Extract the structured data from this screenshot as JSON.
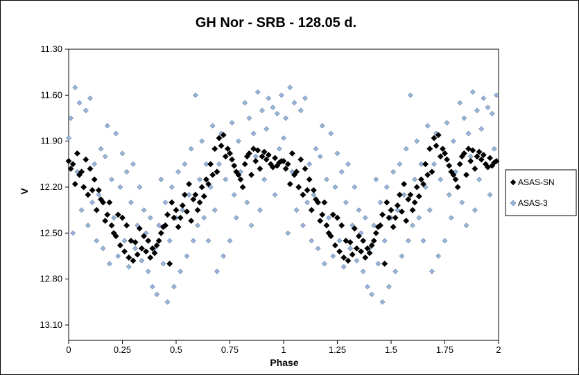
{
  "chart_data": {
    "type": "scatter",
    "title": "GH Nor - SRB - 128.05 d.",
    "xlabel": "Phase",
    "ylabel": "V",
    "xlim": [
      0,
      2
    ],
    "ylim": [
      11.3,
      13.2
    ],
    "y_inverted": true,
    "grid": false,
    "legend_position": "right",
    "x_ticks": [
      "0",
      "0.25",
      "0.5",
      "0.75",
      "1",
      "1.25",
      "1.5",
      "1.75",
      "2"
    ],
    "y_ticks": [
      "11.30",
      "11.60",
      "11.90",
      "12.20",
      "12.50",
      "12.80",
      "13.10"
    ],
    "colors": {
      "ASAS-SN": "#000000",
      "ASAS-3": "#99B4D9"
    },
    "series": [
      {
        "name": "ASAS-SN",
        "marker": "diamond",
        "color": "#000000",
        "x": [
          0.0,
          0.02,
          0.04,
          0.06,
          0.08,
          0.1,
          0.12,
          0.14,
          0.16,
          0.18,
          0.2,
          0.22,
          0.24,
          0.26,
          0.28,
          0.3,
          0.32,
          0.34,
          0.36,
          0.38,
          0.4,
          0.42,
          0.44,
          0.46,
          0.48,
          0.5,
          0.52,
          0.54,
          0.56,
          0.58,
          0.6,
          0.62,
          0.64,
          0.66,
          0.68,
          0.7,
          0.72,
          0.74,
          0.76,
          0.78,
          0.8,
          0.82,
          0.84,
          0.86,
          0.88,
          0.9,
          0.92,
          0.94,
          0.96,
          0.98,
          0.01,
          0.05,
          0.09,
          0.13,
          0.17,
          0.21,
          0.25,
          0.29,
          0.33,
          0.37,
          0.41,
          0.45,
          0.49,
          0.53,
          0.57,
          0.61,
          0.65,
          0.69,
          0.73,
          0.77,
          0.81,
          0.85,
          0.89,
          0.93,
          0.97,
          0.03,
          0.11,
          0.19,
          0.27,
          0.35,
          0.43,
          0.51,
          0.59,
          0.67,
          0.75,
          0.83,
          0.91,
          0.99,
          0.47,
          0.31,
          0.07,
          0.15,
          0.23,
          0.39,
          0.55,
          0.63,
          0.71,
          0.79,
          0.87,
          0.95
        ],
        "y": [
          12.03,
          12.05,
          11.98,
          12.1,
          12.02,
          12.08,
          12.15,
          12.22,
          12.3,
          12.38,
          12.45,
          12.52,
          12.58,
          12.62,
          12.66,
          12.68,
          12.64,
          12.6,
          12.62,
          12.66,
          12.63,
          12.55,
          12.46,
          12.38,
          12.3,
          12.35,
          12.4,
          12.25,
          12.18,
          12.28,
          12.35,
          12.2,
          12.15,
          12.05,
          11.95,
          11.88,
          11.86,
          11.95,
          12.02,
          12.1,
          12.15,
          12.05,
          11.98,
          11.95,
          11.96,
          12.0,
          12.02,
          12.05,
          12.01,
          12.04,
          12.08,
          12.12,
          12.25,
          12.35,
          12.42,
          12.5,
          12.4,
          12.55,
          12.47,
          12.55,
          12.58,
          12.45,
          12.4,
          12.32,
          12.42,
          12.3,
          12.18,
          12.1,
          12.0,
          12.06,
          12.2,
          12.12,
          12.08,
          11.99,
          12.06,
          12.18,
          12.22,
          12.3,
          12.45,
          12.52,
          12.5,
          12.46,
          12.25,
          12.12,
          11.98,
          12.0,
          11.97,
          12.03,
          12.7,
          12.56,
          12.2,
          12.28,
          12.38,
          12.6,
          12.36,
          12.26,
          11.93,
          12.12,
          12.03,
          12.07
        ]
      },
      {
        "name": "ASAS-3",
        "marker": "diamond",
        "color": "#99B4D9",
        "x": [
          0.0,
          0.01,
          0.02,
          0.03,
          0.04,
          0.05,
          0.06,
          0.07,
          0.08,
          0.09,
          0.1,
          0.11,
          0.12,
          0.13,
          0.14,
          0.15,
          0.16,
          0.17,
          0.18,
          0.19,
          0.2,
          0.21,
          0.22,
          0.23,
          0.24,
          0.25,
          0.26,
          0.27,
          0.28,
          0.29,
          0.3,
          0.31,
          0.32,
          0.33,
          0.34,
          0.35,
          0.36,
          0.37,
          0.38,
          0.39,
          0.4,
          0.41,
          0.42,
          0.43,
          0.44,
          0.45,
          0.46,
          0.47,
          0.48,
          0.49,
          0.5,
          0.51,
          0.52,
          0.53,
          0.54,
          0.55,
          0.56,
          0.57,
          0.58,
          0.59,
          0.6,
          0.61,
          0.62,
          0.63,
          0.64,
          0.65,
          0.66,
          0.67,
          0.68,
          0.69,
          0.7,
          0.71,
          0.72,
          0.73,
          0.74,
          0.75,
          0.76,
          0.77,
          0.78,
          0.79,
          0.8,
          0.81,
          0.82,
          0.83,
          0.84,
          0.85,
          0.86,
          0.87,
          0.88,
          0.89,
          0.9,
          0.91,
          0.92,
          0.93,
          0.94,
          0.95,
          0.96,
          0.97,
          0.98,
          0.99
        ],
        "y": [
          11.88,
          11.75,
          12.5,
          11.55,
          12.1,
          11.65,
          12.35,
          12.2,
          11.7,
          12.45,
          11.62,
          12.3,
          12.05,
          12.55,
          12.25,
          11.95,
          12.6,
          12.0,
          11.8,
          12.7,
          12.15,
          12.4,
          11.85,
          12.65,
          12.2,
          11.98,
          12.55,
          12.1,
          12.72,
          12.3,
          12.05,
          12.6,
          12.45,
          12.2,
          12.68,
          12.35,
          12.5,
          12.75,
          12.4,
          12.85,
          12.6,
          12.9,
          12.45,
          12.15,
          12.7,
          12.3,
          12.95,
          12.55,
          12.2,
          12.85,
          12.4,
          12.1,
          12.75,
          12.35,
          12.05,
          12.65,
          12.25,
          11.95,
          12.55,
          11.6,
          12.45,
          12.15,
          11.9,
          12.4,
          12.05,
          12.55,
          12.2,
          11.8,
          12.35,
          12.75,
          12.05,
          11.85,
          12.65,
          12.15,
          11.95,
          12.55,
          11.78,
          12.25,
          12.4,
          11.9,
          12.1,
          12.2,
          11.65,
          12.3,
          11.75,
          12.45,
          11.85,
          12.0,
          11.58,
          12.35,
          11.7,
          12.15,
          11.82,
          11.62,
          12.05,
          11.68,
          12.25,
          11.72,
          11.95,
          11.6
        ]
      }
    ]
  }
}
